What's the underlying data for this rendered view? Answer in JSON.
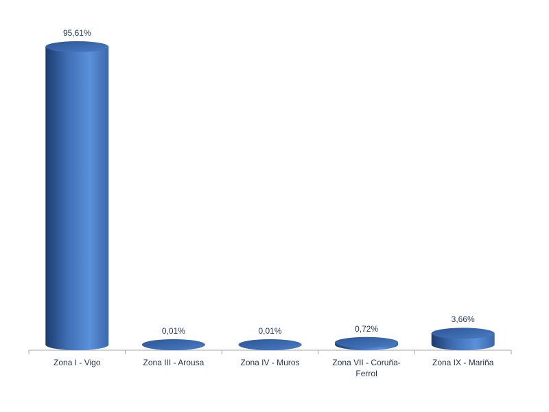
{
  "chart_data": {
    "type": "bar",
    "categories": [
      "Zona I - Vigo",
      "Zona III - Arousa",
      "Zona IV - Muros",
      "Zona VII - Coruña-Ferrol",
      "Zona IX - Mariña"
    ],
    "values": [
      95.61,
      0.01,
      0.01,
      0.72,
      3.66
    ],
    "value_labels": [
      "95,61%",
      "0,01%",
      "0,01%",
      "0,72%",
      "3,66%"
    ],
    "color": "#4a7cc4"
  }
}
